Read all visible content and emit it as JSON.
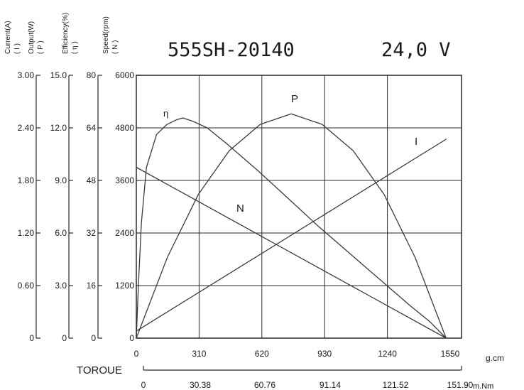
{
  "header": {
    "model": "555SH-20140",
    "voltage": "24,0 V"
  },
  "chart_data": {
    "type": "line",
    "title": "555SH-20140",
    "subtitle": "24,0 V",
    "x": {
      "label": "TOROUE",
      "primary": {
        "unit": "g.cm",
        "ticks": [
          0,
          310,
          620,
          930,
          1240,
          1550
        ],
        "range": [
          0,
          1550
        ]
      },
      "secondary": {
        "unit": "m.Nm",
        "ticks": [
          "0",
          "30.38",
          "60.76",
          "91.14",
          "121.52",
          "151.90"
        ]
      }
    },
    "axes": [
      {
        "id": "current",
        "label": "Current(A)",
        "symbol": "( I )",
        "ticks": [
          "0",
          "0.60",
          "1.20",
          "1.80",
          "2.40",
          "3.00"
        ],
        "range": [
          0,
          3.0
        ]
      },
      {
        "id": "output",
        "label": "Output(W)",
        "symbol": "( P )",
        "ticks": [
          "0",
          "3.0",
          "6.0",
          "9.0",
          "12.0",
          "15.0"
        ],
        "range": [
          0,
          15.0
        ]
      },
      {
        "id": "efficiency",
        "label": "Efficiency(%)",
        "symbol": "( η )",
        "ticks": [
          "0",
          "16",
          "32",
          "48",
          "64",
          "80"
        ],
        "range": [
          0,
          80
        ]
      },
      {
        "id": "speed",
        "label": "Speed(rpm)",
        "symbol": "( N )",
        "ticks": [
          "0",
          "1200",
          "2400",
          "3600",
          "4800",
          "6000"
        ],
        "range": [
          0,
          6000
        ]
      }
    ],
    "series": [
      {
        "name": "N",
        "axis": "speed",
        "x": [
          0,
          1530
        ],
        "y": [
          3900,
          0
        ]
      },
      {
        "name": "I",
        "axis": "current",
        "x": [
          0,
          1530
        ],
        "y": [
          0.08,
          2.27
        ]
      },
      {
        "name": "P",
        "axis": "output",
        "x": [
          0,
          153,
          306,
          459,
          612,
          765,
          918,
          1071,
          1224,
          1377,
          1530
        ],
        "y": [
          0,
          4.6,
          8.2,
          10.7,
          12.2,
          12.8,
          12.2,
          10.7,
          8.2,
          4.6,
          0
        ]
      },
      {
        "name": "η",
        "axis": "efficiency",
        "x": [
          0,
          10,
          25,
          50,
          100,
          150,
          200,
          230,
          280,
          350,
          450,
          600,
          750,
          900,
          1050,
          1200,
          1350,
          1450,
          1530
        ],
        "y": [
          0,
          16,
          35,
          52,
          62,
          65,
          66.5,
          67,
          66,
          64,
          59,
          51,
          42.5,
          34,
          26,
          18,
          10,
          5,
          0
        ]
      }
    ],
    "grid": true
  }
}
